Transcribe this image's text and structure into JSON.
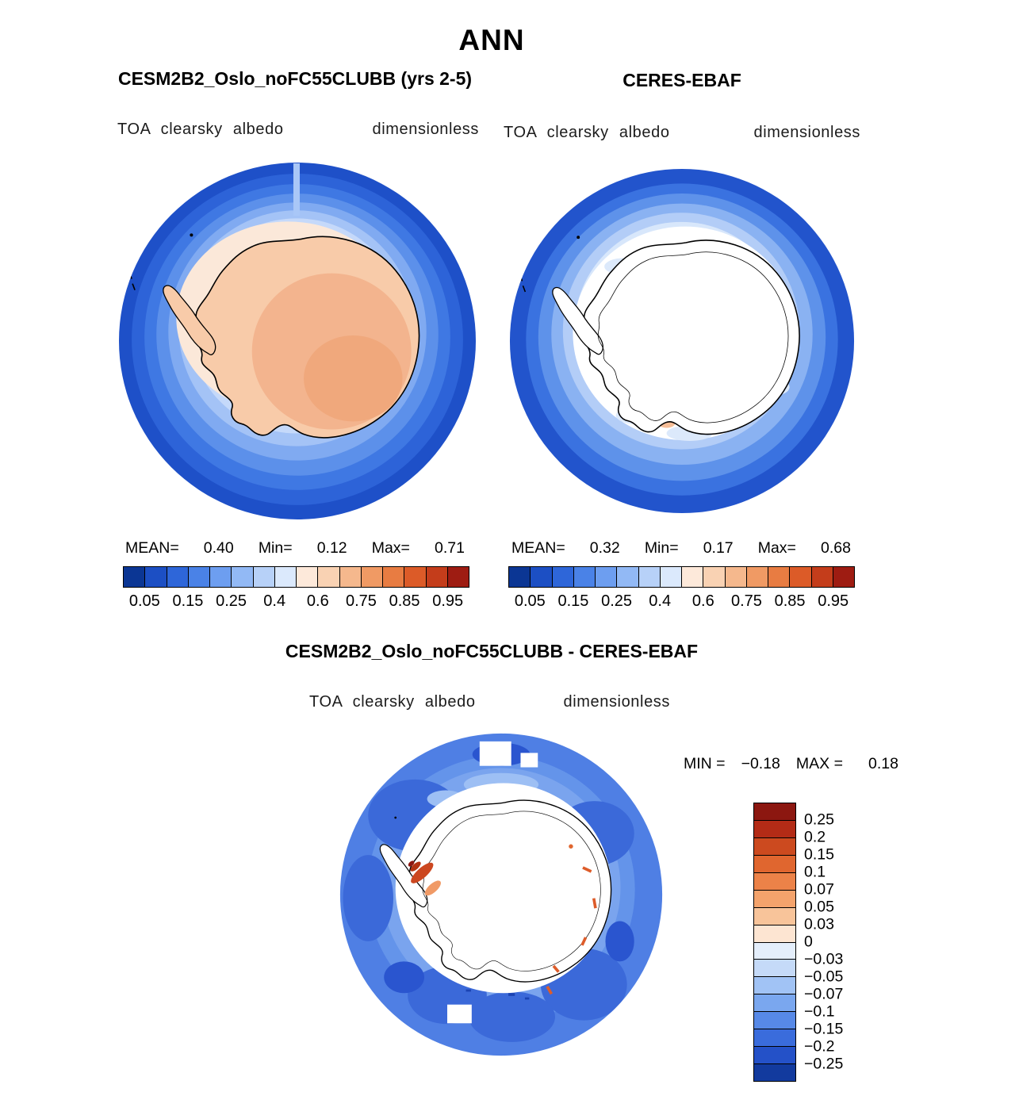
{
  "page_title": "ANN",
  "panels": {
    "model": {
      "title": "CESM2B2_Oslo_noFC55CLUBB (yrs 2-5)",
      "variable": "TOA clearsky albedo",
      "units": "dimensionless",
      "stats": {
        "mean_label": "MEAN=",
        "mean": "0.40",
        "min_label": "Min=",
        "min": "0.12",
        "max_label": "Max=",
        "max": "0.71"
      },
      "ticks": [
        "0.05",
        "0.15",
        "0.25",
        "0.4",
        "0.6",
        "0.75",
        "0.85",
        "0.95"
      ]
    },
    "obs": {
      "title": "CERES-EBAF",
      "variable": "TOA clearsky albedo",
      "units": "dimensionless",
      "stats": {
        "mean_label": "MEAN=",
        "mean": "0.32",
        "min_label": "Min=",
        "min": "0.17",
        "max_label": "Max=",
        "max": "0.68"
      },
      "ticks": [
        "0.05",
        "0.15",
        "0.25",
        "0.4",
        "0.6",
        "0.75",
        "0.85",
        "0.95"
      ]
    },
    "diff": {
      "title": "CESM2B2_Oslo_noFC55CLUBB - CERES-EBAF",
      "variable": "TOA clearsky albedo",
      "units": "dimensionless",
      "min_label": "MIN =",
      "min": "−0.18",
      "max_label": "MAX =",
      "max": "0.18",
      "ticks": [
        "0.25",
        "0.2",
        "0.15",
        "0.1",
        "0.07",
        "0.05",
        "0.03",
        "0",
        "−0.03",
        "−0.05",
        "−0.07",
        "−0.1",
        "−0.15",
        "−0.2",
        "−0.25"
      ]
    }
  },
  "palettes": {
    "albedo": [
      "#0b3694",
      "#1c4fc4",
      "#2e66d9",
      "#4a82e7",
      "#6d9ef0",
      "#92b9f5",
      "#b7d1f8",
      "#dbe9fc",
      "#fde9da",
      "#f9d2b3",
      "#f5b88d",
      "#f09a64",
      "#e87c42",
      "#dc5b28",
      "#c43d1b",
      "#9e1c12"
    ],
    "difference": [
      "#8c1710",
      "#b32b16",
      "#cc4a1f",
      "#e0662f",
      "#ec8248",
      "#f4a36c",
      "#f8c49a",
      "#fde5d2",
      "#e4eefb",
      "#c5daf8",
      "#a1c3f5",
      "#7aa7ef",
      "#5789e7",
      "#3a6cdc",
      "#2451c8",
      "#123a9e"
    ]
  },
  "chart_data": [
    {
      "type": "heatmap",
      "subtype": "south-polar-stereographic-map",
      "season": "ANN",
      "title": "CESM2B2_Oslo_noFC55CLUBB (yrs 2-5)",
      "variable": "TOA clearsky albedo",
      "units": "dimensionless",
      "stats": {
        "mean": 0.4,
        "min": 0.12,
        "max": 0.71
      },
      "contour_levels": [
        0.05,
        0.1,
        0.15,
        0.2,
        0.25,
        0.3,
        0.4,
        0.5,
        0.6,
        0.7,
        0.75,
        0.8,
        0.85,
        0.9,
        0.95
      ],
      "labeled_ticks": [
        0.05,
        0.15,
        0.25,
        0.4,
        0.6,
        0.75,
        0.85,
        0.95
      ],
      "palette": "albedo",
      "legend_position": "below",
      "summary": "Low albedo (dark blue ~0.1) over Southern Ocean ring, rising to ~0.7-0.8 (pale orange) over the Antarctic continent"
    },
    {
      "type": "heatmap",
      "subtype": "south-polar-stereographic-map",
      "season": "ANN",
      "title": "CERES-EBAF",
      "variable": "TOA clearsky albedo",
      "units": "dimensionless",
      "stats": {
        "mean": 0.32,
        "min": 0.17,
        "max": 0.68
      },
      "contour_levels": [
        0.05,
        0.1,
        0.15,
        0.2,
        0.25,
        0.3,
        0.4,
        0.5,
        0.6,
        0.7,
        0.75,
        0.8,
        0.85,
        0.9,
        0.95
      ],
      "labeled_ticks": [
        0.05,
        0.15,
        0.25,
        0.4,
        0.6,
        0.75,
        0.85,
        0.95
      ],
      "palette": "albedo",
      "legend_position": "below",
      "summary": "Blue ocean ring with broad white (>0.95 / missing) region over and around Antarctica; scattered pale orange near coast"
    },
    {
      "type": "heatmap",
      "subtype": "south-polar-stereographic-map",
      "season": "ANN",
      "title": "CESM2B2_Oslo_noFC55CLUBB - CERES-EBAF",
      "variable": "TOA clearsky albedo",
      "units": "dimensionless",
      "stats": {
        "min": -0.18,
        "max": 0.18
      },
      "contour_levels": [
        -0.25,
        -0.2,
        -0.15,
        -0.1,
        -0.07,
        -0.05,
        -0.03,
        0,
        0.03,
        0.05,
        0.07,
        0.1,
        0.15,
        0.2,
        0.25
      ],
      "palette": "difference",
      "legend_position": "right",
      "summary": "Negative bias (blue, −0.05 to −0.15) over Southern Ocean ring; near zero (white) over continent; positive patches (red) near Antarctic Peninsula and coast"
    }
  ]
}
